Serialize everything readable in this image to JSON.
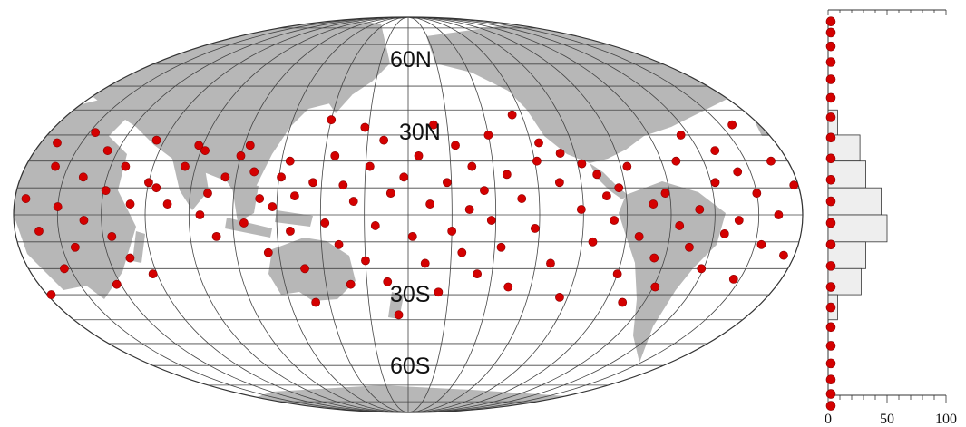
{
  "chart_data": [
    {
      "type": "scatter",
      "projection": "Mollweide world map (Pacific-centred)",
      "title": "",
      "latitude_labels": [
        "60N",
        "30N",
        "30S",
        "60S"
      ],
      "meridian_step_deg": 20,
      "parallel_step_deg": 10,
      "land_color": "#b7b7b7",
      "ocean_color": "#ffffff",
      "grid_color": "#444444",
      "marker_color": "#d40000",
      "points": [
        {
          "lon": 60,
          "lat": 12
        },
        {
          "lon": 64,
          "lat": 10
        },
        {
          "lon": 75,
          "lat": 18
        },
        {
          "lon": 70,
          "lat": 4
        },
        {
          "lon": 78,
          "lat": 26
        },
        {
          "lon": 82,
          "lat": 24
        },
        {
          "lon": 85,
          "lat": 0
        },
        {
          "lon": 88,
          "lat": 8
        },
        {
          "lon": 92,
          "lat": -8
        },
        {
          "lon": 95,
          "lat": 14
        },
        {
          "lon": 100,
          "lat": 22
        },
        {
          "lon": 103,
          "lat": 26
        },
        {
          "lon": 105,
          "lat": -3
        },
        {
          "lon": 108,
          "lat": 16
        },
        {
          "lon": 112,
          "lat": 6
        },
        {
          "lon": 115,
          "lat": -14
        },
        {
          "lon": 118,
          "lat": 3
        },
        {
          "lon": 121,
          "lat": 14
        },
        {
          "lon": 124,
          "lat": 20
        },
        {
          "lon": 126,
          "lat": -6
        },
        {
          "lon": 128,
          "lat": 7
        },
        {
          "lon": 131,
          "lat": -20
        },
        {
          "lon": 133,
          "lat": -33
        },
        {
          "lon": 136,
          "lat": 12
        },
        {
          "lon": 140,
          "lat": 36
        },
        {
          "lon": 142,
          "lat": -3
        },
        {
          "lon": 145,
          "lat": 22
        },
        {
          "lon": 148,
          "lat": -11
        },
        {
          "lon": 150,
          "lat": 11
        },
        {
          "lon": 152,
          "lat": -26
        },
        {
          "lon": 155,
          "lat": 5
        },
        {
          "lon": 158,
          "lat": 33
        },
        {
          "lon": 160,
          "lat": -17
        },
        {
          "lon": 162,
          "lat": 18
        },
        {
          "lon": 165,
          "lat": -4
        },
        {
          "lon": 168,
          "lat": 28
        },
        {
          "lon": 170,
          "lat": -25
        },
        {
          "lon": 172,
          "lat": 8
        },
        {
          "lon": 175,
          "lat": -38
        },
        {
          "lon": 178,
          "lat": 14
        },
        {
          "lon": -178,
          "lat": -8
        },
        {
          "lon": -175,
          "lat": 22
        },
        {
          "lon": -172,
          "lat": -18
        },
        {
          "lon": -170,
          "lat": 4
        },
        {
          "lon": -167,
          "lat": 34
        },
        {
          "lon": -165,
          "lat": -29
        },
        {
          "lon": -162,
          "lat": 12
        },
        {
          "lon": -160,
          "lat": -6
        },
        {
          "lon": -157,
          "lat": 26
        },
        {
          "lon": -155,
          "lat": -14
        },
        {
          "lon": -152,
          "lat": 2
        },
        {
          "lon": -150,
          "lat": 18
        },
        {
          "lon": -147,
          "lat": -22
        },
        {
          "lon": -145,
          "lat": 9
        },
        {
          "lon": -142,
          "lat": -2
        },
        {
          "lon": -140,
          "lat": 30
        },
        {
          "lon": -137,
          "lat": -12
        },
        {
          "lon": -134,
          "lat": 15
        },
        {
          "lon": -131,
          "lat": -27
        },
        {
          "lon": -128,
          "lat": 6
        },
        {
          "lon": -125,
          "lat": 38
        },
        {
          "lon": -122,
          "lat": -5
        },
        {
          "lon": -119,
          "lat": 20
        },
        {
          "lon": -116,
          "lat": 27
        },
        {
          "lon": -113,
          "lat": -18
        },
        {
          "lon": -110,
          "lat": 12
        },
        {
          "lon": -107,
          "lat": 23
        },
        {
          "lon": -104,
          "lat": -31
        },
        {
          "lon": -101,
          "lat": 2
        },
        {
          "lon": -98,
          "lat": 19
        },
        {
          "lon": -95,
          "lat": -10
        },
        {
          "lon": -92,
          "lat": 15
        },
        {
          "lon": -89,
          "lat": 7
        },
        {
          "lon": -86,
          "lat": -2
        },
        {
          "lon": -83,
          "lat": 10
        },
        {
          "lon": -80,
          "lat": -22
        },
        {
          "lon": -77,
          "lat": 18
        },
        {
          "lon": -74,
          "lat": -8
        },
        {
          "lon": -71,
          "lat": -33
        },
        {
          "lon": -68,
          "lat": 4
        },
        {
          "lon": -65,
          "lat": -16
        },
        {
          "lon": -62,
          "lat": 8
        },
        {
          "lon": -59,
          "lat": -27
        },
        {
          "lon": -56,
          "lat": -4
        },
        {
          "lon": -53,
          "lat": 20
        },
        {
          "lon": -50,
          "lat": -12
        },
        {
          "lon": -47,
          "lat": 2
        },
        {
          "lon": -44,
          "lat": 30
        },
        {
          "lon": -41,
          "lat": -20
        },
        {
          "lon": -38,
          "lat": 12
        },
        {
          "lon": -35,
          "lat": -7
        },
        {
          "lon": -32,
          "lat": 24
        },
        {
          "lon": -29,
          "lat": -2
        },
        {
          "lon": -26,
          "lat": 16
        },
        {
          "lon": -23,
          "lat": -24
        },
        {
          "lon": -20,
          "lat": 8
        },
        {
          "lon": -17,
          "lat": -11
        },
        {
          "lon": -14,
          "lat": 34
        },
        {
          "lon": -11,
          "lat": 0
        },
        {
          "lon": -8,
          "lat": 20
        },
        {
          "lon": -5,
          "lat": -15
        },
        {
          "lon": -2,
          "lat": 11
        },
        {
          "lon": 2,
          "lat": -30
        },
        {
          "lon": 5,
          "lat": 6
        },
        {
          "lon": 8,
          "lat": 27
        },
        {
          "lon": 11,
          "lat": -6
        },
        {
          "lon": 14,
          "lat": 18
        },
        {
          "lon": 17,
          "lat": -20
        },
        {
          "lon": 20,
          "lat": 3
        },
        {
          "lon": 23,
          "lat": 31
        },
        {
          "lon": 26,
          "lat": -12
        },
        {
          "lon": 29,
          "lat": 14
        },
        {
          "lon": 32,
          "lat": -2
        },
        {
          "lon": 35,
          "lat": 24
        },
        {
          "lon": 38,
          "lat": -26
        },
        {
          "lon": 41,
          "lat": 9
        },
        {
          "lon": 44,
          "lat": -8
        },
        {
          "lon": 47,
          "lat": 18
        },
        {
          "lon": 50,
          "lat": -16
        },
        {
          "lon": 53,
          "lat": 4
        },
        {
          "lon": 56,
          "lat": 28
        },
        {
          "lon": 58,
          "lat": -22
        }
      ]
    },
    {
      "type": "bar",
      "orientation": "horizontal",
      "title": "",
      "xlabel": "",
      "ylabel": "",
      "xlim": [
        0,
        100
      ],
      "x_tick_labels": [
        "0",
        "50",
        "100"
      ],
      "bar_color": "#eeeeee",
      "bin_edges_deg": [
        40,
        30,
        20,
        10,
        0,
        -10,
        -20,
        -30,
        -40
      ],
      "values": [
        8,
        27,
        32,
        45,
        50,
        32,
        28,
        8
      ],
      "markers_lat": [
        85,
        77,
        69,
        61,
        53,
        45,
        37,
        29,
        21,
        13,
        5,
        -3,
        -11,
        -19,
        -27,
        -35,
        -43,
        -51,
        -59,
        -67,
        -75,
        -83
      ]
    }
  ]
}
